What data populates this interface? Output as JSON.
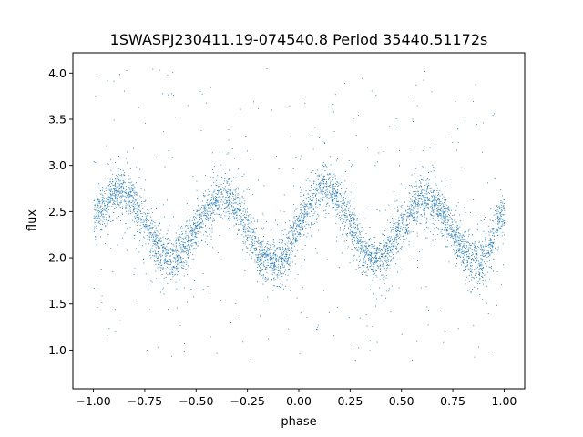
{
  "chart_data": {
    "type": "scatter",
    "title": "1SWASPJ230411.19-074540.8 Period 35440.51172s",
    "xlabel": "phase",
    "ylabel": "flux",
    "xlim": [
      -1.1,
      1.1
    ],
    "ylim": [
      0.58,
      4.22
    ],
    "x_ticks": [
      -1.0,
      -0.75,
      -0.5,
      -0.25,
      0.0,
      0.25,
      0.5,
      0.75,
      1.0
    ],
    "x_tick_labels": [
      "−1.00",
      "−0.75",
      "−0.50",
      "−0.25",
      "0.00",
      "0.25",
      "0.50",
      "0.75",
      "1.00"
    ],
    "y_ticks": [
      1.0,
      1.5,
      2.0,
      2.5,
      3.0,
      3.5,
      4.0
    ],
    "y_tick_labels": [
      "1.0",
      "1.5",
      "2.0",
      "2.5",
      "3.0",
      "3.5",
      "4.0"
    ],
    "grid": false,
    "legend": false,
    "marker_color": "#1f77b4",
    "series": [
      {
        "profile_phase": [
          -1.0,
          -0.875,
          -0.625,
          -0.375,
          -0.125,
          0.125,
          0.375,
          0.625,
          0.875,
          1.0
        ],
        "profile_flux": [
          2.45,
          2.75,
          2.0,
          2.65,
          1.95,
          2.75,
          2.0,
          2.65,
          1.95,
          2.45
        ],
        "scatter_sigma": 0.12,
        "outlier_range": [
          0.85,
          4.05
        ]
      }
    ]
  }
}
